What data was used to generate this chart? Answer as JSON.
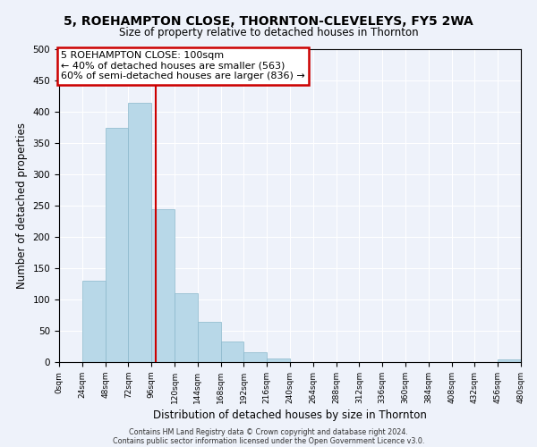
{
  "title": "5, ROEHAMPTON CLOSE, THORNTON-CLEVELEYS, FY5 2WA",
  "subtitle": "Size of property relative to detached houses in Thornton",
  "xlabel": "Distribution of detached houses by size in Thornton",
  "ylabel": "Number of detached properties",
  "footer_line1": "Contains HM Land Registry data © Crown copyright and database right 2024.",
  "footer_line2": "Contains public sector information licensed under the Open Government Licence v3.0.",
  "bin_edges": [
    0,
    24,
    48,
    72,
    96,
    120,
    144,
    168,
    192,
    216,
    240,
    264,
    288,
    312,
    336,
    360,
    384,
    408,
    432,
    456,
    480
  ],
  "bar_heights": [
    0,
    130,
    375,
    415,
    245,
    110,
    65,
    33,
    16,
    6,
    0,
    0,
    0,
    0,
    0,
    0,
    0,
    0,
    0,
    5
  ],
  "bar_color": "#b8d8e8",
  "bar_edge_color": "#8ab8cc",
  "vline_x": 100,
  "vline_color": "#cc0000",
  "annotation_title": "5 ROEHAMPTON CLOSE: 100sqm",
  "annotation_line1": "← 40% of detached houses are smaller (563)",
  "annotation_line2": "60% of semi-detached houses are larger (836) →",
  "annotation_box_color": "white",
  "annotation_box_edge_color": "#cc0000",
  "ylim": [
    0,
    500
  ],
  "xlim": [
    0,
    480
  ],
  "tick_labels": [
    "0sqm",
    "24sqm",
    "48sqm",
    "72sqm",
    "96sqm",
    "120sqm",
    "144sqm",
    "168sqm",
    "192sqm",
    "216sqm",
    "240sqm",
    "264sqm",
    "288sqm",
    "312sqm",
    "336sqm",
    "360sqm",
    "384sqm",
    "408sqm",
    "432sqm",
    "456sqm",
    "480sqm"
  ],
  "tick_positions": [
    0,
    24,
    48,
    72,
    96,
    120,
    144,
    168,
    192,
    216,
    240,
    264,
    288,
    312,
    336,
    360,
    384,
    408,
    432,
    456,
    480
  ],
  "ytick_positions": [
    0,
    50,
    100,
    150,
    200,
    250,
    300,
    350,
    400,
    450,
    500
  ],
  "background_color": "#eef2fa"
}
